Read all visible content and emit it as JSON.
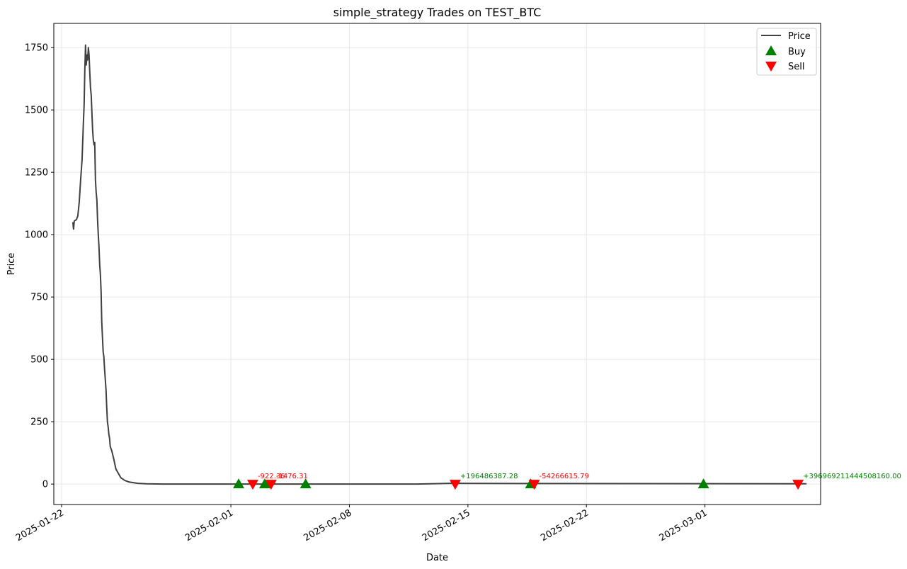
{
  "chart_data": {
    "type": "line",
    "title": "simple_strategy Trades on TEST_BTC",
    "xlabel": "Date",
    "ylabel": "Price",
    "xlim": [
      "2025-01-21T13:00",
      "2025-03-07T20:00"
    ],
    "ylim": [
      -82,
      1847
    ],
    "grid": true,
    "legend_position": "upper-right",
    "x_ticks": [
      "2025-01-22",
      "2025-02-01",
      "2025-02-08",
      "2025-02-15",
      "2025-02-22",
      "2025-03-01"
    ],
    "y_ticks": [
      0,
      250,
      500,
      750,
      1000,
      1250,
      1500,
      1750
    ],
    "series": [
      {
        "name": "Price",
        "color": "#404040",
        "points": [
          [
            "2025-01-22T16:00",
            1050
          ],
          [
            "2025-01-22T17:00",
            1022
          ],
          [
            "2025-01-22T18:00",
            1055
          ],
          [
            "2025-01-22T21:00",
            1060
          ],
          [
            "2025-01-22T23:00",
            1075
          ],
          [
            "2025-01-23T01:00",
            1130
          ],
          [
            "2025-01-23T03:00",
            1220
          ],
          [
            "2025-01-23T05:00",
            1300
          ],
          [
            "2025-01-23T07:00",
            1450
          ],
          [
            "2025-01-23T08:00",
            1520
          ],
          [
            "2025-01-23T09:00",
            1660
          ],
          [
            "2025-01-23T10:00",
            1760
          ],
          [
            "2025-01-23T11:00",
            1680
          ],
          [
            "2025-01-23T12:00",
            1720
          ],
          [
            "2025-01-23T13:00",
            1700
          ],
          [
            "2025-01-23T14:00",
            1750
          ],
          [
            "2025-01-23T15:00",
            1720
          ],
          [
            "2025-01-23T16:00",
            1650
          ],
          [
            "2025-01-23T17:00",
            1590
          ],
          [
            "2025-01-23T18:00",
            1560
          ],
          [
            "2025-01-23T19:00",
            1490
          ],
          [
            "2025-01-23T20:00",
            1420
          ],
          [
            "2025-01-23T21:00",
            1380
          ],
          [
            "2025-01-23T22:00",
            1360
          ],
          [
            "2025-01-23T23:00",
            1370
          ],
          [
            "2025-01-24T00:00",
            1220
          ],
          [
            "2025-01-24T01:00",
            1170
          ],
          [
            "2025-01-24T02:00",
            1140
          ],
          [
            "2025-01-24T03:00",
            1060
          ],
          [
            "2025-01-24T04:00",
            1000
          ],
          [
            "2025-01-24T05:00",
            950
          ],
          [
            "2025-01-24T06:00",
            880
          ],
          [
            "2025-01-24T07:00",
            840
          ],
          [
            "2025-01-24T08:00",
            770
          ],
          [
            "2025-01-24T09:00",
            650
          ],
          [
            "2025-01-24T10:00",
            590
          ],
          [
            "2025-01-24T11:00",
            530
          ],
          [
            "2025-01-24T12:00",
            510
          ],
          [
            "2025-01-24T13:00",
            460
          ],
          [
            "2025-01-24T14:00",
            420
          ],
          [
            "2025-01-24T15:00",
            380
          ],
          [
            "2025-01-24T16:00",
            310
          ],
          [
            "2025-01-24T17:00",
            250
          ],
          [
            "2025-01-24T18:00",
            230
          ],
          [
            "2025-01-24T19:00",
            200
          ],
          [
            "2025-01-24T20:00",
            185
          ],
          [
            "2025-01-24T21:00",
            150
          ],
          [
            "2025-01-24T23:00",
            135
          ],
          [
            "2025-01-25T02:00",
            100
          ],
          [
            "2025-01-25T05:00",
            60
          ],
          [
            "2025-01-25T08:00",
            45
          ],
          [
            "2025-01-25T12:00",
            25
          ],
          [
            "2025-01-25T18:00",
            14
          ],
          [
            "2025-01-26T00:00",
            8
          ],
          [
            "2025-01-26T12:00",
            3
          ],
          [
            "2025-01-27T00:00",
            1
          ],
          [
            "2025-01-28T00:00",
            0
          ],
          [
            "2025-02-12T00:00",
            0
          ],
          [
            "2025-02-14T00:00",
            3
          ],
          [
            "2025-02-18T00:00",
            2
          ],
          [
            "2025-03-07T00:00",
            1
          ]
        ]
      }
    ],
    "markers": {
      "buy": {
        "name": "Buy",
        "color": "#008000",
        "points": [
          [
            "2025-02-01T11:00",
            0
          ],
          [
            "2025-02-03T00:00",
            0
          ],
          [
            "2025-02-05T10:00",
            0
          ],
          [
            "2025-02-18T17:00",
            0
          ],
          [
            "2025-02-28T22:00",
            0
          ]
        ]
      },
      "sell": {
        "name": "Sell",
        "color": "#ff0000",
        "points": [
          [
            "2025-02-02T07:00",
            0
          ],
          [
            "2025-02-03T09:00",
            0
          ],
          [
            "2025-02-14T06:00",
            0
          ],
          [
            "2025-02-18T22:00",
            0
          ],
          [
            "2025-03-06T12:00",
            0
          ]
        ]
      }
    },
    "annotations": [
      {
        "text": "-922.36",
        "x": "2025-02-02T07:00",
        "y": 0,
        "color": "#ff0000"
      },
      {
        "text": "-1476.31",
        "x": "2025-02-03T09:00",
        "y": 0,
        "color": "#ff0000"
      },
      {
        "text": "+196486387.28",
        "x": "2025-02-14T06:00",
        "y": 0,
        "color": "#008000"
      },
      {
        "text": "-54266615.79",
        "x": "2025-02-18T22:00",
        "y": 0,
        "color": "#ff0000"
      },
      {
        "text": "+396969211444508160.00",
        "x": "2025-03-06T12:00",
        "y": 0,
        "color": "#008000"
      }
    ]
  }
}
